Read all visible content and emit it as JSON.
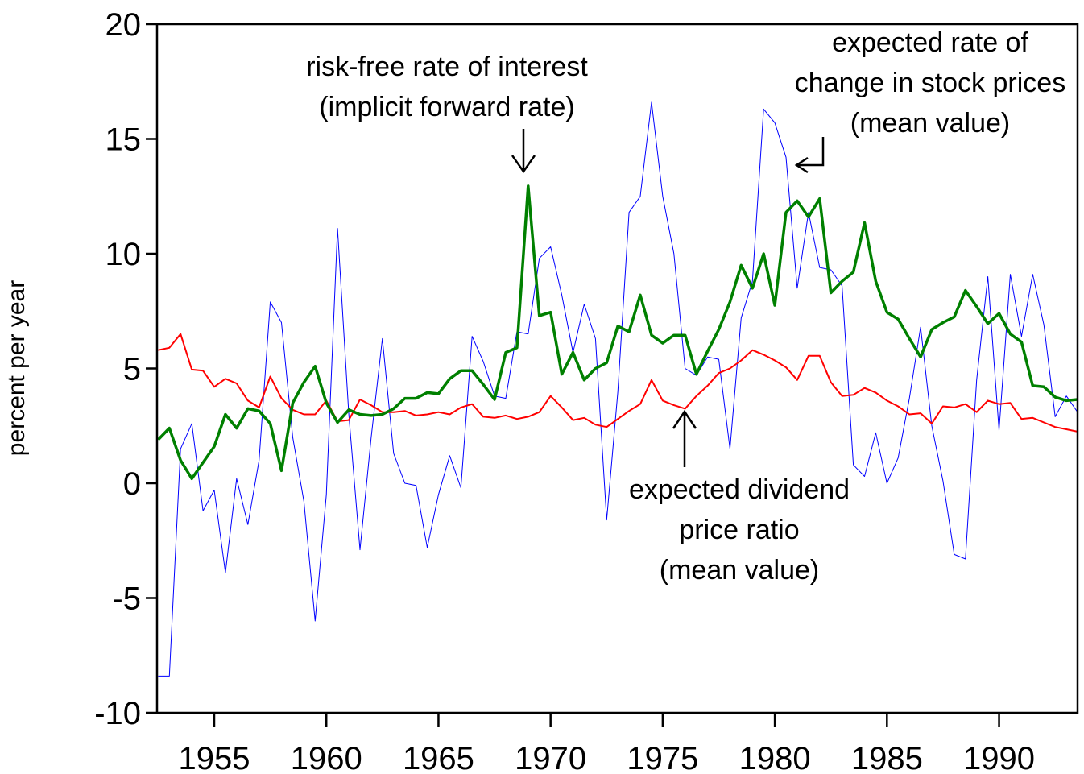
{
  "chart_data": {
    "type": "line",
    "y_label": "percent per year",
    "x": [
      1952.5,
      1953,
      1953.5,
      1954,
      1954.5,
      1955,
      1955.5,
      1956,
      1956.5,
      1957,
      1957.5,
      1958,
      1958.5,
      1959,
      1959.5,
      1960,
      1960.5,
      1961,
      1961.5,
      1962,
      1962.5,
      1963,
      1963.5,
      1964,
      1964.5,
      1965,
      1965.5,
      1966,
      1966.5,
      1967,
      1967.5,
      1968,
      1968.5,
      1969,
      1969.5,
      1970,
      1970.5,
      1971,
      1971.5,
      1972,
      1972.5,
      1973,
      1973.5,
      1974,
      1974.5,
      1975,
      1975.5,
      1976,
      1976.5,
      1977,
      1977.5,
      1978,
      1978.5,
      1979,
      1979.5,
      1980,
      1980.5,
      1981,
      1981.5,
      1982,
      1982.5,
      1983,
      1983.5,
      1984,
      1984.5,
      1985,
      1985.5,
      1986,
      1986.5,
      1987,
      1987.5,
      1988,
      1988.5,
      1989,
      1989.5,
      1990,
      1990.5,
      1991,
      1991.5,
      1992,
      1992.5,
      1993,
      1993.5
    ],
    "series": [
      {
        "color": "#0000ff",
        "width": 1,
        "values": [
          -8.4,
          -8.4,
          1.5,
          2.6,
          -1.2,
          -0.3,
          -3.9,
          0.2,
          -1.8,
          1.0,
          7.9,
          7.0,
          2.0,
          -0.8,
          -6.0,
          -0.5,
          11.1,
          3.0,
          -2.9,
          2.0,
          6.3,
          1.3,
          0.0,
          -0.1,
          -2.8,
          -0.5,
          1.2,
          -0.2,
          6.4,
          5.3,
          3.8,
          3.7,
          6.6,
          6.5,
          9.8,
          10.3,
          8.2,
          5.7,
          7.8,
          6.3,
          -1.6,
          4.0,
          11.8,
          12.5,
          16.6,
          12.5,
          10.0,
          5.0,
          4.7,
          5.5,
          5.4,
          1.5,
          7.2,
          8.8,
          16.3,
          15.7,
          14.2,
          8.5,
          11.8,
          9.4,
          9.3,
          8.6,
          0.8,
          0.3,
          2.2,
          0.0,
          1.1,
          3.7,
          6.8,
          2.5,
          0.1,
          -3.1,
          -3.3,
          4.5,
          9.0,
          2.3,
          9.1,
          6.4,
          9.1,
          6.9,
          2.9,
          3.8,
          3.1
        ]
      },
      {
        "color": "#ff0000",
        "width": 2,
        "values": [
          5.8,
          5.9,
          6.5,
          4.95,
          4.9,
          4.2,
          4.55,
          4.35,
          3.6,
          3.3,
          4.65,
          3.7,
          3.2,
          3.0,
          3.0,
          3.6,
          2.7,
          2.75,
          3.65,
          3.4,
          3.1,
          3.1,
          3.15,
          2.95,
          3.0,
          3.1,
          3.0,
          3.3,
          3.45,
          2.9,
          2.85,
          2.95,
          2.8,
          2.9,
          3.1,
          3.8,
          3.3,
          2.75,
          2.85,
          2.55,
          2.45,
          2.8,
          3.15,
          3.45,
          4.5,
          3.6,
          3.4,
          3.25,
          3.8,
          4.25,
          4.8,
          5.0,
          5.35,
          5.8,
          5.6,
          5.35,
          5.05,
          4.5,
          5.55,
          5.55,
          4.4,
          3.8,
          3.85,
          4.15,
          3.95,
          3.6,
          3.35,
          3.0,
          3.05,
          2.6,
          3.35,
          3.3,
          3.45,
          3.1,
          3.6,
          3.45,
          3.5,
          2.8,
          2.85,
          2.65,
          2.45,
          2.35,
          2.25
        ]
      },
      {
        "color": "#008000",
        "width": 3.5,
        "values": [
          1.9,
          2.4,
          1.0,
          0.2,
          0.9,
          1.6,
          3.0,
          2.4,
          3.25,
          3.15,
          2.6,
          0.55,
          3.5,
          4.4,
          5.1,
          3.5,
          2.65,
          3.2,
          3.0,
          2.95,
          3.0,
          3.25,
          3.7,
          3.7,
          3.95,
          3.9,
          4.55,
          4.9,
          4.9,
          4.3,
          3.65,
          5.7,
          5.9,
          12.95,
          7.3,
          7.45,
          4.75,
          5.7,
          4.5,
          5.0,
          5.25,
          6.85,
          6.6,
          8.2,
          6.45,
          6.1,
          6.45,
          6.45,
          4.75,
          5.75,
          6.7,
          7.9,
          9.5,
          8.5,
          10.0,
          7.75,
          11.8,
          12.3,
          11.6,
          12.4,
          8.3,
          8.8,
          9.2,
          11.35,
          8.8,
          7.45,
          7.15,
          6.3,
          5.5,
          6.7,
          7.0,
          7.25,
          8.4,
          7.7,
          6.95,
          7.4,
          6.5,
          6.15,
          4.25,
          4.2,
          3.75,
          3.6,
          3.65
        ]
      }
    ],
    "xlim": [
      1952.45,
      1993.5
    ],
    "xticks": [
      1955,
      1960,
      1965,
      1970,
      1975,
      1980,
      1985,
      1990
    ],
    "ylim": [
      -10,
      20
    ],
    "yticks": [
      -10,
      -5,
      0,
      5,
      10,
      15,
      20
    ],
    "annotations": [
      {
        "lines": [
          "risk-free rate of interest",
          "(implicit forward rate)"
        ]
      },
      {
        "lines": [
          "expected rate of",
          "change in stock prices",
          "(mean value)"
        ]
      },
      {
        "lines": [
          "expected dividend",
          "price ratio",
          "(mean value)"
        ]
      }
    ]
  }
}
